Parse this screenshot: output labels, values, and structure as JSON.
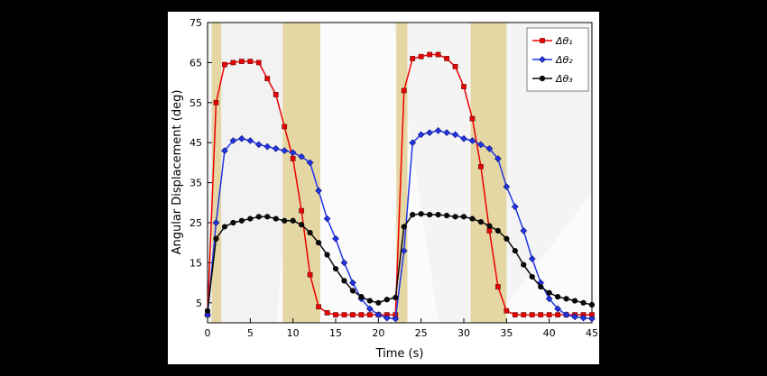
{
  "figure": {
    "background": "#000000",
    "panel_background": "#ffffff",
    "border_color": "#000000"
  },
  "chart_data": {
    "type": "line",
    "title": "",
    "xlabel": "Time (s)",
    "ylabel": "Angular Displacement (deg)",
    "xlim": [
      0,
      45
    ],
    "ylim": [
      0,
      75
    ],
    "xticks": [
      0,
      5,
      10,
      15,
      20,
      25,
      30,
      35,
      40,
      45
    ],
    "yticks": [
      5,
      15,
      25,
      35,
      45,
      55,
      65,
      75
    ],
    "grid": false,
    "legend_position": "top-right",
    "band_color": "#e5d7a3",
    "shaded_bands": [
      [
        0.5,
        1.6
      ],
      [
        8.8,
        13.2
      ],
      [
        22.1,
        23.4
      ],
      [
        30.8,
        35.0
      ]
    ],
    "x": [
      0,
      1,
      2,
      3,
      4,
      5,
      6,
      7,
      8,
      9,
      10,
      11,
      12,
      13,
      14,
      15,
      16,
      17,
      18,
      19,
      20,
      21,
      22,
      23,
      24,
      25,
      26,
      27,
      28,
      29,
      30,
      31,
      32,
      33,
      34,
      35,
      36,
      37,
      38,
      39,
      40,
      41,
      42,
      43,
      44,
      45
    ],
    "series": [
      {
        "id": "delta-theta-1",
        "name": "Δθ₁",
        "color": "#ee0000",
        "edge_color": "#801515",
        "marker": "square",
        "y": [
          2,
          55,
          64.5,
          65,
          65.3,
          65.3,
          65,
          61,
          57,
          49,
          41,
          28,
          12,
          4,
          2.5,
          2,
          2,
          2,
          2,
          2,
          2,
          2,
          2,
          58,
          66,
          66.5,
          67,
          67,
          66,
          64,
          59,
          51,
          39,
          23,
          9,
          3,
          2,
          2,
          2,
          2,
          2,
          2,
          2,
          2,
          2,
          2
        ]
      },
      {
        "id": "delta-theta-2",
        "name": "Δθ₂",
        "color": "#2234e8",
        "edge_color": "#131c8a",
        "marker": "diamond",
        "y": [
          2,
          25,
          43,
          45.5,
          46,
          45.5,
          44.5,
          44,
          43.5,
          43,
          42.5,
          41.5,
          40,
          33,
          26,
          21,
          15,
          10,
          6,
          3.5,
          2,
          1.2,
          1,
          18,
          45,
          47,
          47.5,
          48,
          47.5,
          47,
          46,
          45.5,
          44.5,
          43.5,
          41,
          34,
          29,
          23,
          16,
          10,
          6,
          3.5,
          2,
          1.5,
          1.2,
          1
        ]
      },
      {
        "id": "delta-theta-3",
        "name": "Δθ₃",
        "color": "#0a0a0a",
        "edge_color": "#000000",
        "marker": "circle",
        "y": [
          3,
          21,
          24,
          25,
          25.5,
          26,
          26.5,
          26.5,
          26,
          25.5,
          25.5,
          24.5,
          22.5,
          20,
          17,
          13.5,
          10.5,
          8,
          6.5,
          5.5,
          5,
          5.8,
          6.3,
          24,
          27,
          27.2,
          27,
          27,
          26.8,
          26.5,
          26.5,
          26,
          25.2,
          24.2,
          23,
          21,
          18,
          14.5,
          11.5,
          9,
          7.5,
          6.5,
          6,
          5.5,
          5,
          4.5
        ]
      }
    ]
  }
}
